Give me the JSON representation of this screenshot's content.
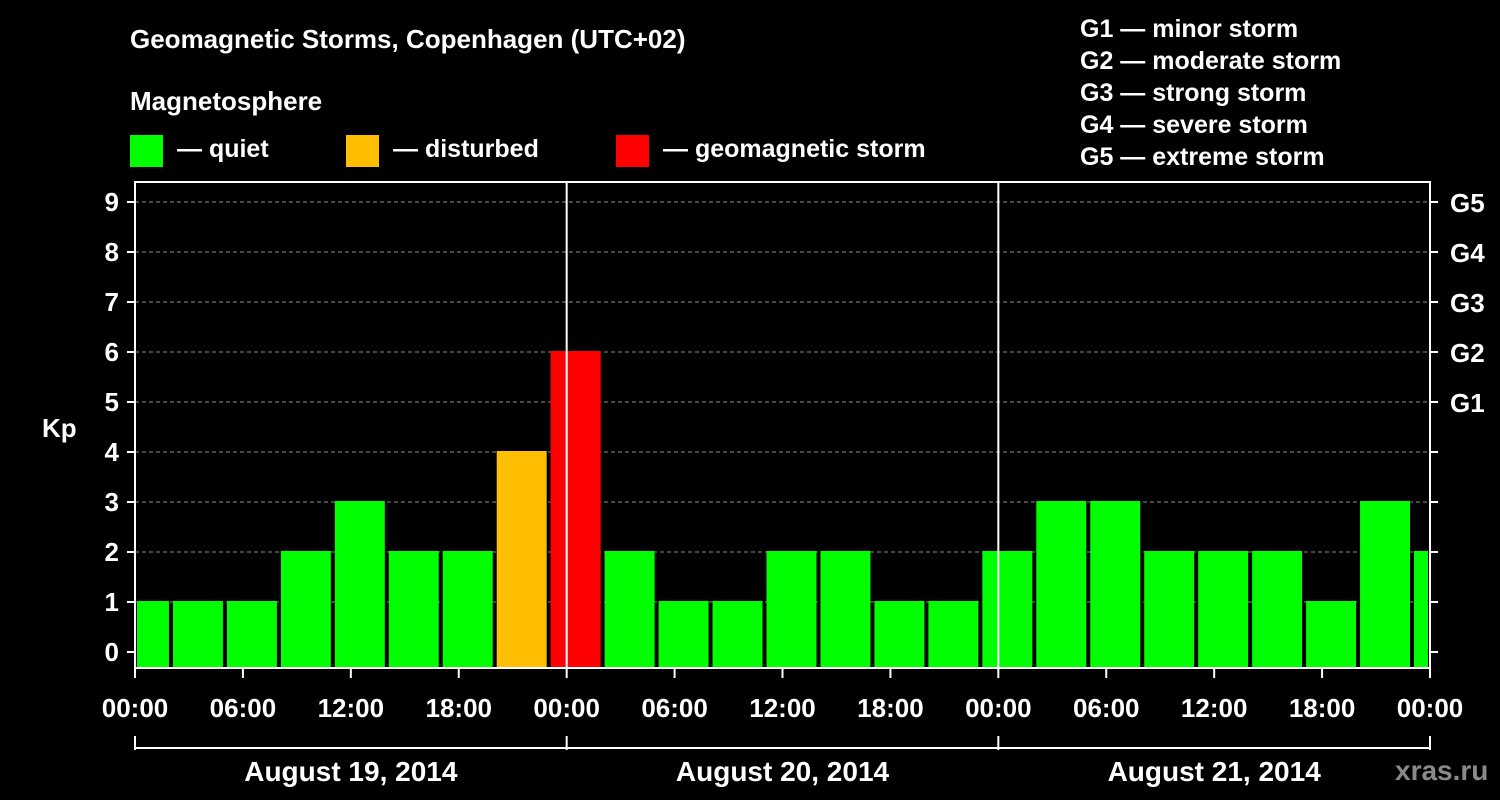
{
  "chart_data": {
    "type": "bar",
    "title": "Geomagnetic Storms, Copenhagen (UTC+02)",
    "ylabel": "Kp",
    "ylim": [
      0,
      9
    ],
    "yticks": [
      0,
      1,
      2,
      3,
      4,
      5,
      6,
      7,
      8,
      9
    ],
    "right_axis": [
      {
        "kp": 5,
        "label": "G1"
      },
      {
        "kp": 6,
        "label": "G2"
      },
      {
        "kp": 7,
        "label": "G3"
      },
      {
        "kp": 8,
        "label": "G4"
      },
      {
        "kp": 9,
        "label": "G5"
      }
    ],
    "x_range_hours": [
      0,
      72
    ],
    "x_ticks": [
      {
        "h": 0,
        "label": "00:00"
      },
      {
        "h": 6,
        "label": "06:00"
      },
      {
        "h": 12,
        "label": "12:00"
      },
      {
        "h": 18,
        "label": "18:00"
      },
      {
        "h": 24,
        "label": "00:00"
      },
      {
        "h": 30,
        "label": "06:00"
      },
      {
        "h": 36,
        "label": "12:00"
      },
      {
        "h": 42,
        "label": "18:00"
      },
      {
        "h": 48,
        "label": "00:00"
      },
      {
        "h": 54,
        "label": "06:00"
      },
      {
        "h": 60,
        "label": "12:00"
      },
      {
        "h": 66,
        "label": "18:00"
      },
      {
        "h": 72,
        "label": "00:00"
      }
    ],
    "day_separators_hours": [
      24,
      48
    ],
    "days": [
      {
        "label": "August 19, 2014",
        "start": 0,
        "end": 24
      },
      {
        "label": "August 20, 2014",
        "start": 24,
        "end": 48
      },
      {
        "label": "August 21, 2014",
        "start": 48,
        "end": 72
      }
    ],
    "bars": [
      {
        "start": 0,
        "end": 2,
        "kp": 1,
        "status": "quiet"
      },
      {
        "start": 2,
        "end": 5,
        "kp": 1,
        "status": "quiet"
      },
      {
        "start": 5,
        "end": 8,
        "kp": 1,
        "status": "quiet"
      },
      {
        "start": 8,
        "end": 11,
        "kp": 2,
        "status": "quiet"
      },
      {
        "start": 11,
        "end": 14,
        "kp": 3,
        "status": "quiet"
      },
      {
        "start": 14,
        "end": 17,
        "kp": 2,
        "status": "quiet"
      },
      {
        "start": 17,
        "end": 20,
        "kp": 2,
        "status": "quiet"
      },
      {
        "start": 20,
        "end": 23,
        "kp": 4,
        "status": "disturbed"
      },
      {
        "start": 23,
        "end": 26,
        "kp": 6,
        "status": "storm"
      },
      {
        "start": 26,
        "end": 29,
        "kp": 2,
        "status": "quiet"
      },
      {
        "start": 29,
        "end": 32,
        "kp": 1,
        "status": "quiet"
      },
      {
        "start": 32,
        "end": 35,
        "kp": 1,
        "status": "quiet"
      },
      {
        "start": 35,
        "end": 38,
        "kp": 2,
        "status": "quiet"
      },
      {
        "start": 38,
        "end": 41,
        "kp": 2,
        "status": "quiet"
      },
      {
        "start": 41,
        "end": 44,
        "kp": 1,
        "status": "quiet"
      },
      {
        "start": 44,
        "end": 47,
        "kp": 1,
        "status": "quiet"
      },
      {
        "start": 47,
        "end": 50,
        "kp": 2,
        "status": "quiet"
      },
      {
        "start": 50,
        "end": 53,
        "kp": 3,
        "status": "quiet"
      },
      {
        "start": 53,
        "end": 56,
        "kp": 3,
        "status": "quiet"
      },
      {
        "start": 56,
        "end": 59,
        "kp": 2,
        "status": "quiet"
      },
      {
        "start": 59,
        "end": 62,
        "kp": 2,
        "status": "quiet"
      },
      {
        "start": 62,
        "end": 65,
        "kp": 2,
        "status": "quiet"
      },
      {
        "start": 65,
        "end": 68,
        "kp": 1,
        "status": "quiet"
      },
      {
        "start": 68,
        "end": 71,
        "kp": 3,
        "status": "quiet"
      },
      {
        "start": 71,
        "end": 72,
        "kp": 2,
        "status": "quiet"
      }
    ],
    "colors": {
      "quiet": "#00ff00",
      "disturbed": "#ffbf00",
      "storm": "#ff0000"
    },
    "legend": {
      "heading": "Magnetosphere",
      "items": [
        {
          "key": "quiet",
          "label": "— quiet"
        },
        {
          "key": "disturbed",
          "label": "— disturbed"
        },
        {
          "key": "storm",
          "label": "— geomagnetic storm"
        }
      ]
    },
    "storm_scale": [
      "G1 — minor storm",
      "G2 — moderate storm",
      "G3 — strong storm",
      "G4 — severe storm",
      "G5 — extreme storm"
    ],
    "watermark": "xras.ru"
  }
}
